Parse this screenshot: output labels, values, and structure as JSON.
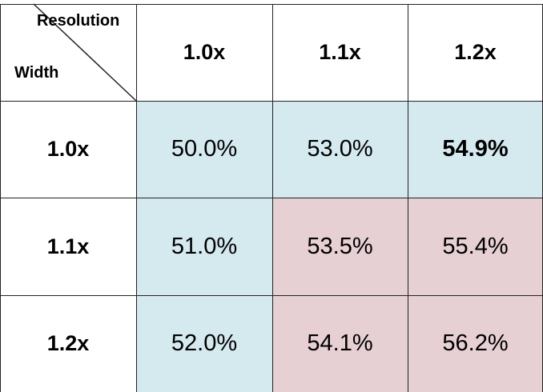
{
  "chart_data": {
    "type": "table",
    "corner": {
      "column_axis_label": "Resolution",
      "row_axis_label": "Width"
    },
    "columns": [
      "1.0x",
      "1.1x",
      "1.2x"
    ],
    "rows": [
      {
        "label": "1.0x",
        "values": [
          "50.0%",
          "53.0%",
          "54.9%"
        ]
      },
      {
        "label": "1.1x",
        "values": [
          "51.0%",
          "53.5%",
          "55.4%"
        ]
      },
      {
        "label": "1.2x",
        "values": [
          "52.0%",
          "54.1%",
          "56.2%"
        ]
      }
    ],
    "bold_cells": [
      [
        0,
        2
      ]
    ],
    "highlight_blue_cells": [
      [
        0,
        0
      ],
      [
        0,
        1
      ],
      [
        0,
        2
      ],
      [
        1,
        0
      ],
      [
        2,
        0
      ]
    ],
    "highlight_pink_cells": [
      [
        1,
        1
      ],
      [
        1,
        2
      ],
      [
        2,
        1
      ],
      [
        2,
        2
      ]
    ]
  },
  "colors": {
    "blue_highlight": "#d5eaee",
    "pink_highlight": "#e6d0d4",
    "grid_line": "#222222",
    "text": "#000000"
  }
}
